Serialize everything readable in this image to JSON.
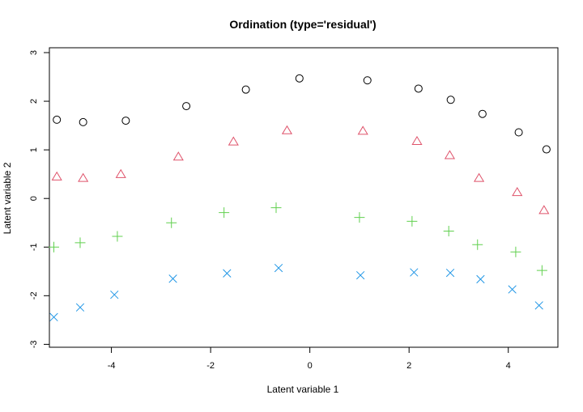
{
  "chart_data": {
    "type": "scatter",
    "title": "Ordination (type='residual')",
    "xlabel": "Latent variable 1",
    "ylabel": "Latent variable 2",
    "xlim": [
      -5.25,
      5.0
    ],
    "ylim": [
      -3.06,
      3.1
    ],
    "x_ticks": [
      -4,
      -2,
      0,
      2,
      4
    ],
    "y_ticks": [
      -3,
      -2,
      -1,
      0,
      1,
      2,
      3
    ],
    "grid": false,
    "legend": "none",
    "series": [
      {
        "marker": "circle",
        "color": "#000000",
        "points": [
          {
            "x": -5.1,
            "y": 1.62
          },
          {
            "x": -4.57,
            "y": 1.57
          },
          {
            "x": -3.71,
            "y": 1.6
          },
          {
            "x": -2.49,
            "y": 1.9
          },
          {
            "x": -1.29,
            "y": 2.24
          },
          {
            "x": -0.21,
            "y": 2.47
          },
          {
            "x": 1.16,
            "y": 2.43
          },
          {
            "x": 2.19,
            "y": 2.26
          },
          {
            "x": 2.84,
            "y": 2.03
          },
          {
            "x": 3.48,
            "y": 1.74
          },
          {
            "x": 4.21,
            "y": 1.36
          },
          {
            "x": 4.77,
            "y": 1.01
          }
        ]
      },
      {
        "marker": "triangle",
        "color": "#DF536B",
        "points": [
          {
            "x": -5.1,
            "y": 0.44
          },
          {
            "x": -4.57,
            "y": 0.41
          },
          {
            "x": -3.81,
            "y": 0.49
          },
          {
            "x": -2.65,
            "y": 0.85
          },
          {
            "x": -1.54,
            "y": 1.16
          },
          {
            "x": -0.46,
            "y": 1.39
          },
          {
            "x": 1.07,
            "y": 1.38
          },
          {
            "x": 2.16,
            "y": 1.17
          },
          {
            "x": 2.82,
            "y": 0.88
          },
          {
            "x": 3.41,
            "y": 0.41
          },
          {
            "x": 4.18,
            "y": 0.12
          },
          {
            "x": 4.72,
            "y": -0.25
          }
        ]
      },
      {
        "marker": "plus",
        "color": "#61D04F",
        "points": [
          {
            "x": -5.16,
            "y": -1.0
          },
          {
            "x": -4.63,
            "y": -0.91
          },
          {
            "x": -3.88,
            "y": -0.78
          },
          {
            "x": -2.79,
            "y": -0.5
          },
          {
            "x": -1.73,
            "y": -0.29
          },
          {
            "x": -0.68,
            "y": -0.19
          },
          {
            "x": 1.0,
            "y": -0.39
          },
          {
            "x": 2.06,
            "y": -0.47
          },
          {
            "x": 2.8,
            "y": -0.67
          },
          {
            "x": 3.38,
            "y": -0.95
          },
          {
            "x": 4.15,
            "y": -1.1
          },
          {
            "x": 4.68,
            "y": -1.48
          }
        ]
      },
      {
        "marker": "cross",
        "color": "#2297E6",
        "points": [
          {
            "x": -5.16,
            "y": -2.44
          },
          {
            "x": -4.63,
            "y": -2.24
          },
          {
            "x": -3.94,
            "y": -1.98
          },
          {
            "x": -2.76,
            "y": -1.65
          },
          {
            "x": -1.67,
            "y": -1.54
          },
          {
            "x": -0.63,
            "y": -1.43
          },
          {
            "x": 1.02,
            "y": -1.58
          },
          {
            "x": 2.1,
            "y": -1.52
          },
          {
            "x": 2.83,
            "y": -1.53
          },
          {
            "x": 3.44,
            "y": -1.66
          },
          {
            "x": 4.08,
            "y": -1.87
          },
          {
            "x": 4.62,
            "y": -2.2
          }
        ]
      }
    ]
  }
}
